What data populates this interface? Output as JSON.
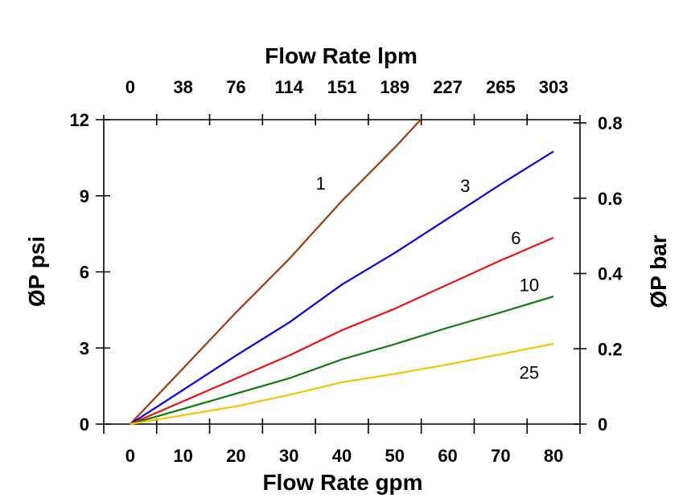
{
  "chart_data": {
    "type": "line",
    "title": "",
    "xlabel": "Flow Rate gpm",
    "x2label": "Flow Rate lpm",
    "ylabel": "ØP psi",
    "y2label": "ØP bar",
    "xlim": [
      -5,
      85
    ],
    "ylim": [
      0,
      12
    ],
    "y2lim": [
      0,
      0.81
    ],
    "grid": false,
    "x_ticks": [
      0,
      10,
      20,
      30,
      40,
      50,
      60,
      70,
      80
    ],
    "x_tick_labels": [
      "0",
      "10",
      "20",
      "30",
      "40",
      "50",
      "60",
      "70",
      "80"
    ],
    "x2_tick_labels": [
      "0",
      "38",
      "76",
      "114",
      "151",
      "189",
      "227",
      "265",
      "303"
    ],
    "y_ticks": [
      0,
      3,
      6,
      9,
      12
    ],
    "y_tick_labels": [
      "0",
      "3",
      "6",
      "9",
      "12"
    ],
    "y2_ticks": [
      0,
      0.2,
      0.4,
      0.6,
      0.8
    ],
    "y2_tick_labels": [
      "0",
      "0.2",
      "0.4",
      "0.6",
      "0.8"
    ],
    "series": [
      {
        "name": "1",
        "color": "#9c3a0a",
        "x": [
          0,
          10,
          20,
          30,
          40,
          50,
          54.9
        ],
        "y": [
          0,
          2.2,
          4.4,
          6.5,
          8.8,
          10.9,
          12
        ]
      },
      {
        "name": "3",
        "color": "#0000ee",
        "x": [
          0,
          10,
          20,
          30,
          40,
          50,
          60,
          70,
          80
        ],
        "y": [
          0,
          1.35,
          2.7,
          4.0,
          5.5,
          6.75,
          8.1,
          9.45,
          10.75
        ]
      },
      {
        "name": "6",
        "color": "#ee1111",
        "x": [
          0,
          10,
          20,
          30,
          40,
          50,
          60,
          70,
          80
        ],
        "y": [
          0,
          0.9,
          1.8,
          2.7,
          3.7,
          4.55,
          5.5,
          6.45,
          7.35
        ]
      },
      {
        "name": "10",
        "color": "#0a7a0a",
        "x": [
          0,
          10,
          20,
          30,
          40,
          50,
          60,
          70,
          80
        ],
        "y": [
          0,
          0.6,
          1.2,
          1.8,
          2.55,
          3.15,
          3.8,
          4.4,
          5.03
        ]
      },
      {
        "name": "25",
        "color": "#f5c400",
        "x": [
          0,
          10,
          20,
          30,
          40,
          50,
          60,
          70,
          80
        ],
        "y": [
          0,
          0.35,
          0.7,
          1.15,
          1.65,
          1.98,
          2.35,
          2.75,
          3.17
        ]
      }
    ],
    "annotations": [
      {
        "text": "1",
        "x": 36,
        "y": 9.5
      },
      {
        "text": "3",
        "x": 63.3,
        "y": 9.4
      },
      {
        "text": "6",
        "x": 72.9,
        "y": 7.35
      },
      {
        "text": "10",
        "x": 75.4,
        "y": 5.5
      },
      {
        "text": "25",
        "x": 75.4,
        "y": 2.05
      }
    ]
  }
}
